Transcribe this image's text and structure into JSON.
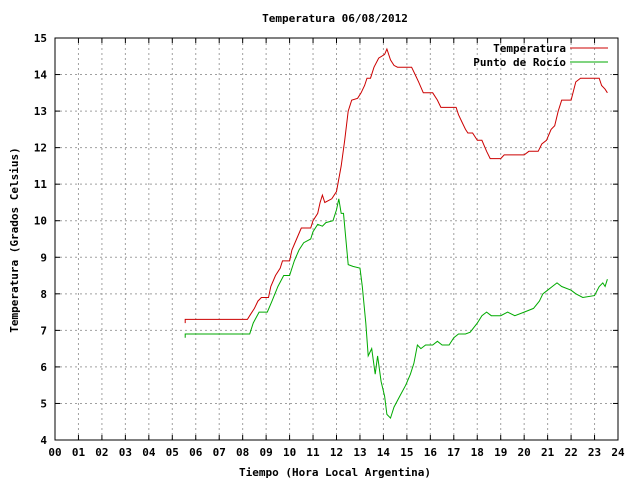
{
  "chart_data": {
    "type": "line",
    "title": "Temperatura 06/08/2012",
    "xlabel": "Tiempo (Hora Local Argentina)",
    "ylabel": "Temperatura (Grados Celsius)",
    "xlim": [
      0,
      24
    ],
    "ylim": [
      4,
      15
    ],
    "x_ticks": [
      "00",
      "01",
      "02",
      "03",
      "04",
      "05",
      "06",
      "07",
      "08",
      "09",
      "10",
      "11",
      "12",
      "13",
      "14",
      "15",
      "16",
      "17",
      "18",
      "19",
      "20",
      "21",
      "22",
      "23",
      "24"
    ],
    "y_ticks": [
      "4",
      "5",
      "6",
      "7",
      "8",
      "9",
      "10",
      "11",
      "12",
      "13",
      "14",
      "15"
    ],
    "grid": true,
    "legend_position": "top-right",
    "series": [
      {
        "name": "Temperatura",
        "color": "#cc0000",
        "points": [
          [
            5.55,
            7.2
          ],
          [
            5.55,
            7.3
          ],
          [
            8.2,
            7.3
          ],
          [
            8.3,
            7.4
          ],
          [
            8.5,
            7.6
          ],
          [
            8.65,
            7.8
          ],
          [
            8.8,
            7.9
          ],
          [
            9.1,
            7.9
          ],
          [
            9.2,
            8.2
          ],
          [
            9.4,
            8.5
          ],
          [
            9.6,
            8.7
          ],
          [
            9.7,
            8.9
          ],
          [
            10.0,
            8.9
          ],
          [
            10.1,
            9.2
          ],
          [
            10.3,
            9.5
          ],
          [
            10.5,
            9.8
          ],
          [
            10.9,
            9.8
          ],
          [
            11.0,
            10.0
          ],
          [
            11.2,
            10.2
          ],
          [
            11.3,
            10.5
          ],
          [
            11.4,
            10.7
          ],
          [
            11.5,
            10.5
          ],
          [
            11.8,
            10.6
          ],
          [
            12.0,
            10.8
          ],
          [
            12.2,
            11.5
          ],
          [
            12.35,
            12.2
          ],
          [
            12.5,
            13.0
          ],
          [
            12.65,
            13.3
          ],
          [
            12.9,
            13.35
          ],
          [
            13.05,
            13.5
          ],
          [
            13.2,
            13.7
          ],
          [
            13.3,
            13.9
          ],
          [
            13.45,
            13.9
          ],
          [
            13.6,
            14.2
          ],
          [
            13.8,
            14.45
          ],
          [
            14.05,
            14.55
          ],
          [
            14.15,
            14.7
          ],
          [
            14.3,
            14.4
          ],
          [
            14.45,
            14.25
          ],
          [
            14.6,
            14.2
          ],
          [
            15.2,
            14.2
          ],
          [
            15.35,
            14.0
          ],
          [
            15.5,
            13.8
          ],
          [
            15.7,
            13.5
          ],
          [
            16.1,
            13.5
          ],
          [
            16.3,
            13.3
          ],
          [
            16.45,
            13.1
          ],
          [
            17.1,
            13.1
          ],
          [
            17.2,
            12.9
          ],
          [
            17.35,
            12.7
          ],
          [
            17.5,
            12.5
          ],
          [
            17.6,
            12.4
          ],
          [
            17.8,
            12.4
          ],
          [
            18.0,
            12.2
          ],
          [
            18.2,
            12.2
          ],
          [
            18.4,
            11.9
          ],
          [
            18.55,
            11.7
          ],
          [
            19.0,
            11.7
          ],
          [
            19.15,
            11.8
          ],
          [
            20.0,
            11.8
          ],
          [
            20.2,
            11.9
          ],
          [
            20.6,
            11.9
          ],
          [
            20.75,
            12.1
          ],
          [
            20.95,
            12.2
          ],
          [
            21.15,
            12.5
          ],
          [
            21.3,
            12.6
          ],
          [
            21.45,
            13.0
          ],
          [
            21.6,
            13.3
          ],
          [
            22.0,
            13.3
          ],
          [
            22.2,
            13.8
          ],
          [
            22.4,
            13.9
          ],
          [
            23.2,
            13.9
          ],
          [
            23.3,
            13.7
          ],
          [
            23.45,
            13.6
          ],
          [
            23.55,
            13.5
          ]
        ]
      },
      {
        "name": "Punto de Rocío",
        "color": "#00aa00",
        "points": [
          [
            5.55,
            6.8
          ],
          [
            5.55,
            6.9
          ],
          [
            8.3,
            6.9
          ],
          [
            8.45,
            7.2
          ],
          [
            8.7,
            7.5
          ],
          [
            9.05,
            7.5
          ],
          [
            9.25,
            7.8
          ],
          [
            9.5,
            8.2
          ],
          [
            9.75,
            8.5
          ],
          [
            10.0,
            8.5
          ],
          [
            10.2,
            8.9
          ],
          [
            10.4,
            9.2
          ],
          [
            10.6,
            9.4
          ],
          [
            10.9,
            9.5
          ],
          [
            11.0,
            9.7
          ],
          [
            11.2,
            9.9
          ],
          [
            11.4,
            9.85
          ],
          [
            11.55,
            9.95
          ],
          [
            11.85,
            10.0
          ],
          [
            12.0,
            10.3
          ],
          [
            12.1,
            10.6
          ],
          [
            12.2,
            10.2
          ],
          [
            12.3,
            10.2
          ],
          [
            12.5,
            8.8
          ],
          [
            12.7,
            8.75
          ],
          [
            13.0,
            8.7
          ],
          [
            13.1,
            8.2
          ],
          [
            13.25,
            7.2
          ],
          [
            13.35,
            6.3
          ],
          [
            13.5,
            6.5
          ],
          [
            13.65,
            5.8
          ],
          [
            13.75,
            6.3
          ],
          [
            13.9,
            5.6
          ],
          [
            14.05,
            5.2
          ],
          [
            14.15,
            4.7
          ],
          [
            14.3,
            4.6
          ],
          [
            14.45,
            4.9
          ],
          [
            14.7,
            5.2
          ],
          [
            14.95,
            5.5
          ],
          [
            15.15,
            5.8
          ],
          [
            15.3,
            6.1
          ],
          [
            15.45,
            6.6
          ],
          [
            15.6,
            6.5
          ],
          [
            15.8,
            6.6
          ],
          [
            16.1,
            6.6
          ],
          [
            16.3,
            6.7
          ],
          [
            16.5,
            6.6
          ],
          [
            16.8,
            6.6
          ],
          [
            17.0,
            6.8
          ],
          [
            17.2,
            6.9
          ],
          [
            17.5,
            6.9
          ],
          [
            17.7,
            6.95
          ],
          [
            18.0,
            7.2
          ],
          [
            18.2,
            7.4
          ],
          [
            18.4,
            7.5
          ],
          [
            18.6,
            7.4
          ],
          [
            19.0,
            7.4
          ],
          [
            19.3,
            7.5
          ],
          [
            19.6,
            7.4
          ],
          [
            20.0,
            7.5
          ],
          [
            20.4,
            7.6
          ],
          [
            20.65,
            7.8
          ],
          [
            20.8,
            8.0
          ],
          [
            21.0,
            8.1
          ],
          [
            21.2,
            8.2
          ],
          [
            21.4,
            8.3
          ],
          [
            21.6,
            8.2
          ],
          [
            22.0,
            8.1
          ],
          [
            22.2,
            8.0
          ],
          [
            22.5,
            7.9
          ],
          [
            23.0,
            7.95
          ],
          [
            23.2,
            8.2
          ],
          [
            23.35,
            8.3
          ],
          [
            23.45,
            8.2
          ],
          [
            23.55,
            8.4
          ]
        ]
      }
    ]
  }
}
